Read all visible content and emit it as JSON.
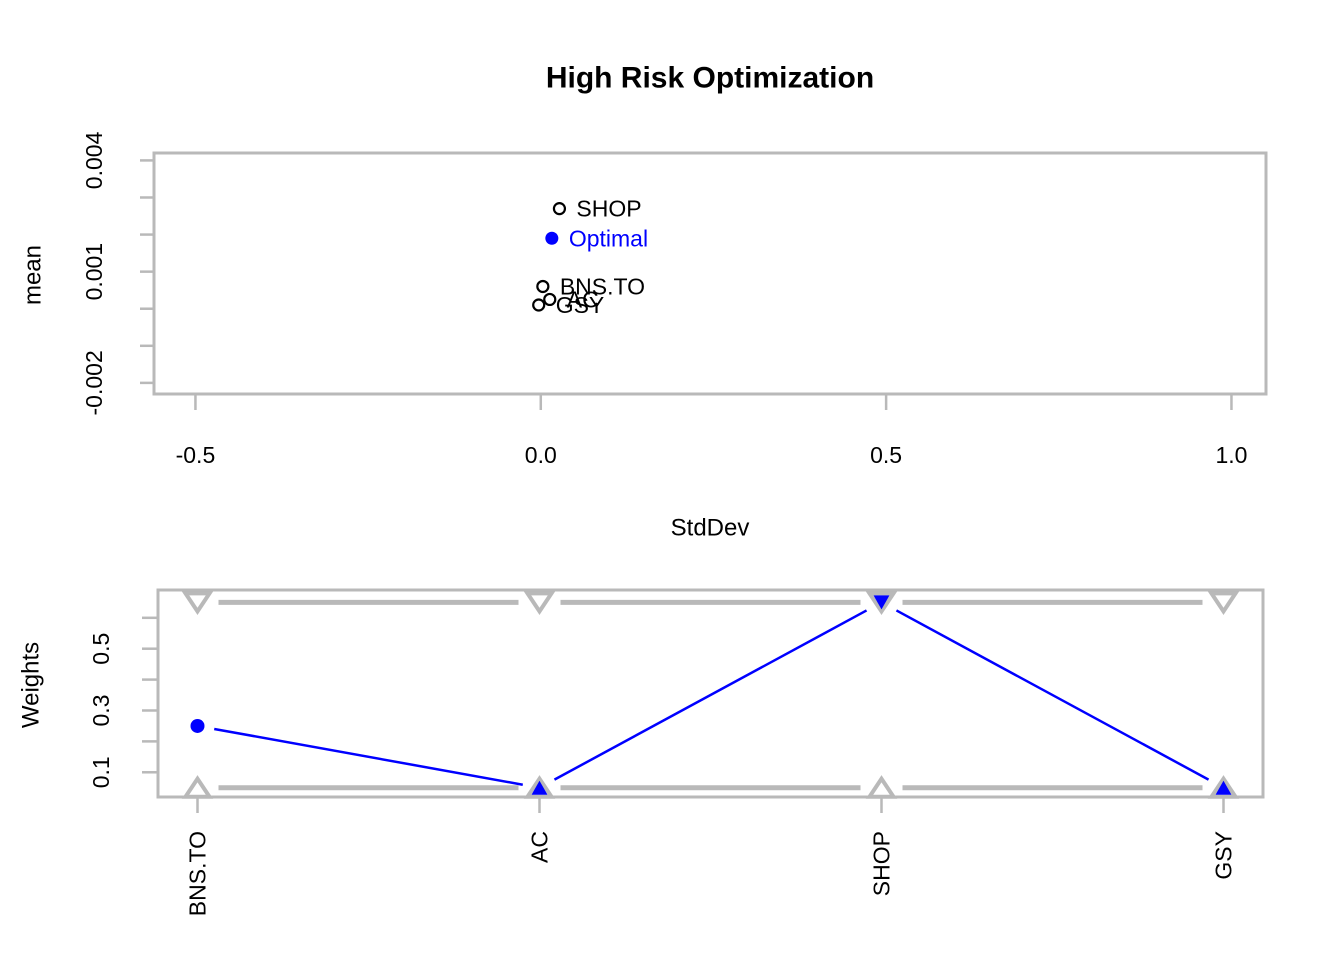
{
  "title": "High Risk Optimization",
  "colors": {
    "accent_blue": "#0000ff",
    "frame_gray": "#b9b9b9",
    "text_black": "#000000",
    "background": "#ffffff"
  },
  "chart_data": [
    {
      "type": "scatter",
      "name": "risk-return-scatter",
      "title": "High Risk Optimization",
      "xlabel": "StdDev",
      "ylabel": "mean",
      "xlim": [
        -0.56,
        1.05
      ],
      "ylim": [
        -0.0023,
        0.0042
      ],
      "x_ticks": [
        -0.5,
        0.0,
        0.5,
        1.0
      ],
      "x_tick_labels": [
        "-0.5",
        "0.0",
        "0.5",
        "1.0"
      ],
      "y_ticks": [
        0.004,
        0.003,
        0.002,
        0.001,
        0.0,
        -0.001,
        -0.002
      ],
      "y_tick_labels": [
        "0.004",
        "",
        "",
        "0.001",
        "",
        "",
        "-0.002"
      ],
      "grid": false,
      "legend": "none",
      "points": [
        {
          "label": "SHOP",
          "x": 0.027,
          "y": 0.0027,
          "marker": "open-circle",
          "color": "#000000"
        },
        {
          "label": "Optimal",
          "x": 0.016,
          "y": 0.0019,
          "marker": "filled-circle",
          "color": "#0000ff"
        },
        {
          "label": "BNS.TO",
          "x": 0.003,
          "y": 0.0006,
          "marker": "open-circle",
          "color": "#000000"
        },
        {
          "label": "AC",
          "x": 0.013,
          "y": 0.00025,
          "marker": "open-circle",
          "color": "#000000"
        },
        {
          "label": "GSY",
          "x": -0.003,
          "y": 0.0001,
          "marker": "open-circle",
          "color": "#000000"
        }
      ]
    },
    {
      "type": "line",
      "name": "weights-line-plot",
      "ylabel": "Weights",
      "categories": [
        "BNS.TO",
        "AC",
        "SHOP",
        "GSY"
      ],
      "series": [
        {
          "name": "optimal-weights",
          "values": [
            0.25,
            0.05,
            0.65,
            0.05
          ],
          "color": "#0000ff"
        }
      ],
      "constraints": {
        "min": 0.05,
        "max": 0.65
      },
      "ylim": [
        0.02,
        0.69
      ],
      "y_ticks": [
        0.1,
        0.2,
        0.3,
        0.4,
        0.5,
        0.6
      ],
      "y_tick_labels": [
        "0.1",
        "",
        "0.3",
        "",
        "0.5",
        ""
      ],
      "grid": false,
      "legend": "none"
    }
  ]
}
